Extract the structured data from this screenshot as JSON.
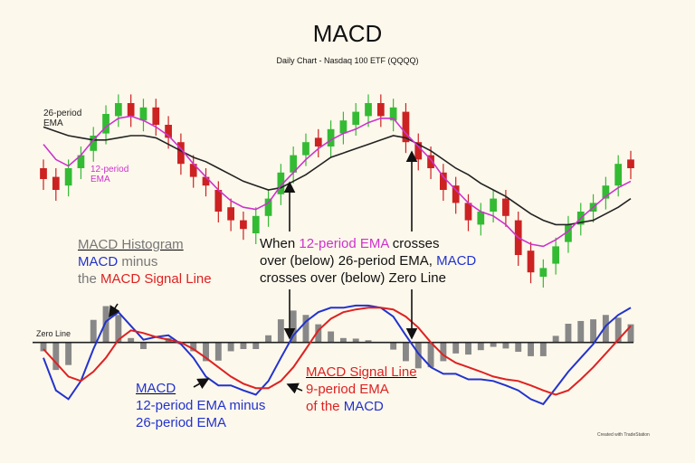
{
  "chart_data": [
    {
      "type": "candlestick",
      "title": "MACD",
      "subtitle": "Daily Chart - Nasdaq 100 ETF (QQQQ)",
      "open": [
        60,
        56,
        52,
        60,
        68,
        76,
        84,
        90,
        82,
        88,
        80,
        72,
        62,
        56,
        50,
        42,
        36,
        30,
        38,
        48,
        58,
        66,
        74,
        70,
        76,
        80,
        84,
        90,
        82,
        86,
        72,
        66,
        58,
        52,
        44,
        34,
        40,
        46,
        36,
        22,
        10,
        16,
        26,
        34,
        40,
        46,
        52,
        64
      ],
      "high": [
        64,
        60,
        64,
        70,
        79,
        89,
        94,
        94,
        92,
        92,
        84,
        76,
        66,
        60,
        54,
        46,
        40,
        42,
        50,
        62,
        70,
        76,
        78,
        82,
        86,
        90,
        94,
        94,
        92,
        90,
        76,
        70,
        62,
        56,
        48,
        44,
        50,
        50,
        40,
        26,
        18,
        28,
        38,
        44,
        48,
        56,
        66,
        68
      ],
      "low": [
        50,
        45,
        47,
        55,
        63,
        71,
        79,
        79,
        77,
        75,
        69,
        57,
        51,
        47,
        35,
        31,
        27,
        25,
        33,
        43,
        53,
        61,
        65,
        65,
        71,
        75,
        79,
        79,
        77,
        67,
        59,
        55,
        45,
        39,
        31,
        29,
        35,
        33,
        15,
        7,
        5,
        11,
        21,
        29,
        35,
        41,
        47,
        55
      ],
      "close": [
        55,
        50,
        60,
        66,
        75,
        85,
        90,
        84,
        88,
        80,
        74,
        62,
        56,
        52,
        40,
        36,
        32,
        38,
        46,
        58,
        66,
        72,
        70,
        78,
        82,
        86,
        90,
        84,
        88,
        72,
        64,
        60,
        50,
        44,
        36,
        40,
        46,
        38,
        20,
        12,
        14,
        24,
        34,
        40,
        44,
        52,
        62,
        60
      ],
      "up_color": "#33bb33",
      "down_color": "#cc2222",
      "ylim": [
        0,
        100
      ],
      "series": [
        {
          "name": "26-period EMA",
          "color": "#222222",
          "values": [
            79,
            77,
            75,
            74,
            73,
            73,
            74,
            75,
            75,
            74,
            71,
            68,
            65,
            63,
            60,
            57,
            54,
            52,
            50,
            51,
            54,
            57,
            61,
            65,
            67,
            69,
            71,
            73,
            75,
            74,
            71,
            68,
            64,
            60,
            57,
            53,
            50,
            47,
            43,
            39,
            36,
            34,
            34,
            35,
            36,
            39,
            42,
            46
          ]
        },
        {
          "name": "12-period EMA",
          "color": "#cc33cc",
          "values": [
            71,
            64,
            61,
            66,
            73,
            79,
            83,
            84,
            82,
            79,
            75,
            69,
            62,
            56,
            50,
            45,
            42,
            41,
            44,
            52,
            58,
            64,
            69,
            73,
            76,
            78,
            81,
            83,
            83,
            76,
            70,
            64,
            56,
            50,
            44,
            40,
            38,
            34,
            28,
            25,
            24,
            27,
            31,
            37,
            42,
            47,
            51,
            54
          ]
        }
      ]
    },
    {
      "type": "macd",
      "ylim": [
        -15,
        8
      ],
      "zero_line_label": "Zero Line",
      "histogram": {
        "color": "#888888",
        "values": [
          -1.6,
          -5,
          -4.1,
          0,
          4.1,
          6.6,
          5,
          0.8,
          -1.2,
          0,
          0.8,
          -0.3,
          -1.6,
          -3.4,
          -3.3,
          -1.6,
          -1.2,
          -1.2,
          1.3,
          4.2,
          5.8,
          5,
          3.3,
          2,
          0.8,
          0.7,
          0.4,
          0,
          -1.3,
          -3.4,
          -4.7,
          -4.5,
          -3.4,
          -2,
          -2.2,
          -1.4,
          -0.8,
          -1.1,
          -1.7,
          -2.5,
          -2.5,
          1.2,
          3.4,
          3.9,
          4.2,
          5,
          4.5,
          3.3
        ]
      },
      "series": [
        {
          "color": "#2233cc",
          "values": [
            -2.8,
            -8.7,
            -10.3,
            -7,
            -1.2,
            3.8,
            5.5,
            3,
            0.5,
            1,
            1.3,
            -0.3,
            -2.8,
            -6.2,
            -7.8,
            -7.8,
            -8.7,
            -9.5,
            -7,
            -2.8,
            1.3,
            3.8,
            5.5,
            6.3,
            6.3,
            6.7,
            6.7,
            6.3,
            4.7,
            1.3,
            -2,
            -4.5,
            -5.7,
            -5.7,
            -6.7,
            -6.7,
            -7,
            -7.8,
            -8.7,
            -10.3,
            -11.2,
            -8.3,
            -5.3,
            -2.8,
            -0.3,
            3,
            5,
            6.3
          ]
        },
        {
          "color": "#dd2222",
          "values": [
            -1.2,
            -3.7,
            -6.2,
            -7,
            -5.3,
            -2.8,
            0.5,
            2.2,
            1.7,
            1,
            0.5,
            0,
            -1.2,
            -2.8,
            -4.5,
            -6.2,
            -7.5,
            -8.3,
            -8.3,
            -7,
            -4.5,
            -1.2,
            2.2,
            4.3,
            5.5,
            6,
            6.3,
            6.3,
            6,
            4.7,
            2.7,
            0,
            -2.3,
            -3.7,
            -4.5,
            -5.3,
            -6.2,
            -6.7,
            -7,
            -7.8,
            -8.7,
            -9.5,
            -8.7,
            -6.7,
            -4.5,
            -2,
            0.5,
            3
          ]
        }
      ]
    }
  ],
  "annotations": [
    {
      "lines": [
        [
          {
            "text": "MACD Histogram",
            "color": "#777777"
          }
        ],
        [
          {
            "text": "MACD",
            "color": "#2233cc"
          },
          {
            "text": " minus",
            "color": "#777777"
          }
        ],
        [
          {
            "text": "the ",
            "color": "#777777"
          },
          {
            "text": "MACD Signal Line",
            "color": "#dd2222"
          }
        ]
      ]
    },
    {
      "lines": [
        [
          {
            "text": "When ",
            "color": "#111111"
          },
          {
            "text": "12-period EMA",
            "color": "#cc33cc"
          },
          {
            "text": " crosses",
            "color": "#111111"
          }
        ],
        [
          {
            "text": "over (below) 26-period EMA, ",
            "color": "#111111"
          },
          {
            "text": "MACD",
            "color": "#2233cc"
          }
        ],
        [
          {
            "text": "crosses over (below) Zero Line",
            "color": "#111111"
          }
        ]
      ]
    },
    {
      "lines": [
        [
          {
            "text": "MACD",
            "color": "#2233cc"
          }
        ],
        [
          {
            "text": "12-period EMA minus",
            "color": "#2233cc"
          }
        ],
        [
          {
            "text": "26-period EMA",
            "color": "#2233cc"
          }
        ]
      ]
    },
    {
      "lines": [
        [
          {
            "text": "MACD Signal Line",
            "color": "#dd2222"
          }
        ],
        [
          {
            "text": "9-period EMA",
            "color": "#dd2222"
          }
        ],
        [
          {
            "text": "of the ",
            "color": "#dd2222"
          },
          {
            "text": "MACD",
            "color": "#2233cc"
          }
        ]
      ]
    }
  ],
  "footer": "Created with TradeStation"
}
